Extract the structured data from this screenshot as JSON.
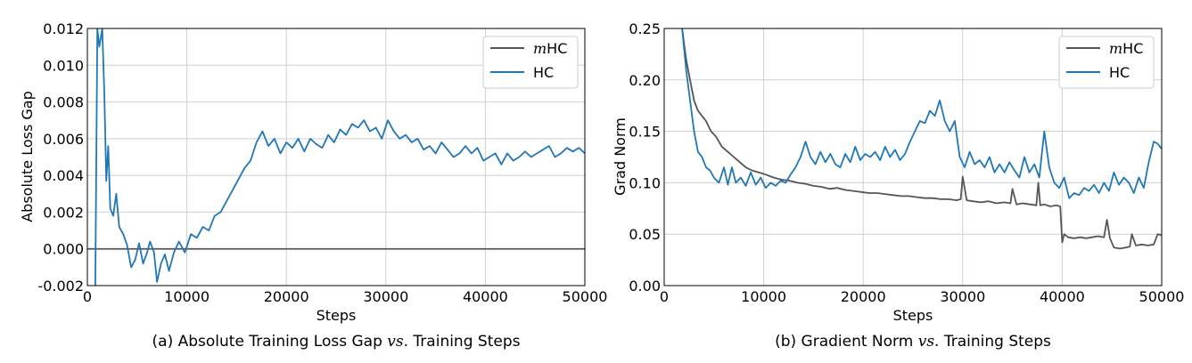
{
  "chart_data": [
    {
      "type": "line",
      "title": "",
      "caption": "(a) Absolute Training Loss Gap vs. Training Steps",
      "caption_parts": [
        "(a) Absolute Training Loss Gap",
        "vs.",
        "Training Steps"
      ],
      "xlabel": "Steps",
      "ylabel": "Absolute Loss Gap",
      "xlim": [
        0,
        50000
      ],
      "ylim": [
        -0.002,
        0.012
      ],
      "xticks": [
        0,
        10000,
        20000,
        30000,
        40000,
        50000
      ],
      "xtick_labels": [
        "0",
        "10000",
        "20000",
        "30000",
        "40000",
        "50000"
      ],
      "yticks": [
        -0.002,
        0.0,
        0.002,
        0.004,
        0.006,
        0.008,
        0.01,
        0.012
      ],
      "ytick_labels": [
        "-0.002",
        "0.000",
        "0.002",
        "0.004",
        "0.006",
        "0.008",
        "0.010",
        "0.012"
      ],
      "grid": true,
      "legend_position": "top-right",
      "reference_line": {
        "y": 0.0,
        "color": "#555555"
      },
      "series": [
        {
          "name": "HC",
          "color": "#1f77b4",
          "x": [
            800,
            1000,
            1200,
            1500,
            1700,
            1900,
            2100,
            2300,
            2600,
            2900,
            3200,
            3600,
            4000,
            4400,
            4800,
            5200,
            5600,
            6000,
            6300,
            6700,
            7000,
            7400,
            7800,
            8200,
            8700,
            9200,
            9800,
            10400,
            11000,
            11600,
            12200,
            12800,
            13400,
            14000,
            14600,
            15200,
            15800,
            16400,
            17000,
            17600,
            18200,
            18800,
            19400,
            20000,
            20600,
            21200,
            21800,
            22400,
            23000,
            23600,
            24200,
            24800,
            25400,
            26000,
            26600,
            27200,
            27800,
            28400,
            29000,
            29600,
            30200,
            30800,
            31400,
            32000,
            32600,
            33200,
            33800,
            34400,
            35000,
            35600,
            36200,
            36800,
            37400,
            38000,
            38600,
            39200,
            39800,
            40400,
            41000,
            41600,
            42200,
            42800,
            43400,
            44000,
            44600,
            45200,
            45800,
            46400,
            47000,
            47600,
            48200,
            48800,
            49400,
            50000
          ],
          "values": [
            -0.002,
            0.012,
            0.011,
            0.012,
            0.0085,
            0.0037,
            0.0056,
            0.0022,
            0.0018,
            0.003,
            0.0012,
            0.0008,
            0.0002,
            -0.001,
            -0.0006,
            0.0003,
            -0.0008,
            -0.0002,
            0.0004,
            -0.0002,
            -0.0018,
            -0.0008,
            -0.0003,
            -0.0012,
            -0.0002,
            0.0004,
            -0.0002,
            0.0008,
            0.0006,
            0.0012,
            0.001,
            0.0018,
            0.002,
            0.0026,
            0.0032,
            0.0038,
            0.0044,
            0.0048,
            0.0058,
            0.0064,
            0.0056,
            0.006,
            0.0052,
            0.0058,
            0.0055,
            0.006,
            0.0053,
            0.006,
            0.0057,
            0.0055,
            0.0062,
            0.0058,
            0.0065,
            0.0062,
            0.0068,
            0.0066,
            0.007,
            0.0064,
            0.0066,
            0.006,
            0.007,
            0.0064,
            0.006,
            0.0062,
            0.0058,
            0.006,
            0.0054,
            0.0056,
            0.0052,
            0.0058,
            0.0054,
            0.005,
            0.0052,
            0.0056,
            0.0052,
            0.0055,
            0.0048,
            0.005,
            0.0052,
            0.0046,
            0.0052,
            0.0048,
            0.005,
            0.0053,
            0.005,
            0.0052,
            0.0054,
            0.0056,
            0.005,
            0.0052,
            0.0055,
            0.0053,
            0.0055,
            0.0052
          ]
        }
      ]
    },
    {
      "type": "line",
      "title": "",
      "caption": "(b) Gradient Norm vs. Training Steps",
      "caption_parts": [
        "(b) Gradient Norm",
        "vs.",
        "Training Steps"
      ],
      "xlabel": "Steps",
      "ylabel": "Grad Norm",
      "xlim": [
        0,
        50000
      ],
      "ylim": [
        0.0,
        0.25
      ],
      "xticks": [
        0,
        10000,
        20000,
        30000,
        40000,
        50000
      ],
      "xtick_labels": [
        "0",
        "10000",
        "20000",
        "30000",
        "40000",
        "50000"
      ],
      "yticks": [
        0.0,
        0.05,
        0.1,
        0.15,
        0.2,
        0.25
      ],
      "ytick_labels": [
        "0.00",
        "0.05",
        "0.10",
        "0.15",
        "0.20",
        "0.25"
      ],
      "grid": true,
      "legend_position": "top-right",
      "series": [
        {
          "name": "mHC",
          "color": "#555555",
          "x": [
            1800,
            2200,
            2600,
            3000,
            3400,
            3800,
            4200,
            4700,
            5200,
            5800,
            6400,
            7000,
            7600,
            8200,
            8800,
            9500,
            10200,
            11000,
            11800,
            12600,
            13400,
            14200,
            15000,
            15800,
            16600,
            17400,
            18200,
            19000,
            19800,
            20600,
            21400,
            22200,
            23000,
            23800,
            24600,
            25400,
            26200,
            27000,
            27800,
            28600,
            29400,
            29800,
            30000,
            30400,
            31000,
            31800,
            32600,
            33400,
            34200,
            34800,
            35000,
            35400,
            36000,
            36800,
            37400,
            37600,
            37800,
            38200,
            38800,
            39400,
            39800,
            40000,
            40200,
            40600,
            41200,
            41800,
            42400,
            43000,
            43600,
            44200,
            44500,
            44800,
            45200,
            45800,
            46400,
            46800,
            47000,
            47400,
            48000,
            48600,
            49200,
            49600,
            50000
          ],
          "values": [
            0.25,
            0.22,
            0.2,
            0.18,
            0.17,
            0.165,
            0.16,
            0.15,
            0.145,
            0.135,
            0.13,
            0.125,
            0.12,
            0.115,
            0.112,
            0.11,
            0.108,
            0.105,
            0.103,
            0.102,
            0.1,
            0.099,
            0.097,
            0.096,
            0.094,
            0.095,
            0.093,
            0.092,
            0.091,
            0.09,
            0.09,
            0.089,
            0.088,
            0.087,
            0.087,
            0.086,
            0.085,
            0.085,
            0.084,
            0.084,
            0.083,
            0.084,
            0.106,
            0.083,
            0.082,
            0.081,
            0.082,
            0.08,
            0.081,
            0.08,
            0.094,
            0.079,
            0.08,
            0.079,
            0.078,
            0.1,
            0.078,
            0.079,
            0.077,
            0.078,
            0.077,
            0.042,
            0.05,
            0.047,
            0.046,
            0.047,
            0.046,
            0.047,
            0.048,
            0.047,
            0.064,
            0.046,
            0.037,
            0.036,
            0.037,
            0.038,
            0.05,
            0.039,
            0.04,
            0.039,
            0.04,
            0.05,
            0.049
          ]
        },
        {
          "name": "HC",
          "color": "#1f77b4",
          "x": [
            1800,
            2200,
            2600,
            3000,
            3400,
            3800,
            4200,
            4600,
            5000,
            5500,
            6000,
            6400,
            6800,
            7200,
            7700,
            8200,
            8700,
            9200,
            9700,
            10200,
            10700,
            11200,
            11700,
            12200,
            12700,
            13200,
            13700,
            14200,
            14700,
            15200,
            15700,
            16200,
            16700,
            17200,
            17700,
            18200,
            18700,
            19200,
            19700,
            20200,
            20700,
            21200,
            21700,
            22200,
            22700,
            23200,
            23700,
            24200,
            24700,
            25200,
            25700,
            26200,
            26700,
            27200,
            27700,
            28200,
            28700,
            29200,
            29700,
            30200,
            30700,
            31200,
            31700,
            32200,
            32700,
            33200,
            33700,
            34200,
            34700,
            35200,
            35700,
            36200,
            36700,
            37200,
            37700,
            38200,
            38700,
            39200,
            39700,
            40200,
            40700,
            41200,
            41700,
            42200,
            42700,
            43200,
            43700,
            44200,
            44700,
            45200,
            45700,
            46200,
            46700,
            47200,
            47700,
            48200,
            48700,
            49200,
            49600,
            50000
          ],
          "values": [
            0.25,
            0.21,
            0.18,
            0.15,
            0.13,
            0.125,
            0.115,
            0.112,
            0.105,
            0.1,
            0.115,
            0.098,
            0.115,
            0.1,
            0.105,
            0.097,
            0.11,
            0.098,
            0.105,
            0.095,
            0.1,
            0.097,
            0.102,
            0.1,
            0.108,
            0.115,
            0.125,
            0.14,
            0.125,
            0.118,
            0.13,
            0.12,
            0.128,
            0.118,
            0.115,
            0.128,
            0.12,
            0.135,
            0.122,
            0.128,
            0.125,
            0.13,
            0.122,
            0.135,
            0.125,
            0.132,
            0.122,
            0.128,
            0.14,
            0.15,
            0.16,
            0.158,
            0.17,
            0.165,
            0.18,
            0.16,
            0.15,
            0.16,
            0.125,
            0.115,
            0.13,
            0.118,
            0.122,
            0.115,
            0.125,
            0.11,
            0.118,
            0.11,
            0.12,
            0.112,
            0.105,
            0.125,
            0.11,
            0.118,
            0.105,
            0.15,
            0.115,
            0.1,
            0.095,
            0.105,
            0.085,
            0.09,
            0.088,
            0.095,
            0.092,
            0.098,
            0.09,
            0.1,
            0.092,
            0.11,
            0.098,
            0.105,
            0.1,
            0.09,
            0.105,
            0.095,
            0.12,
            0.14,
            0.138,
            0.133
          ]
        }
      ]
    }
  ]
}
